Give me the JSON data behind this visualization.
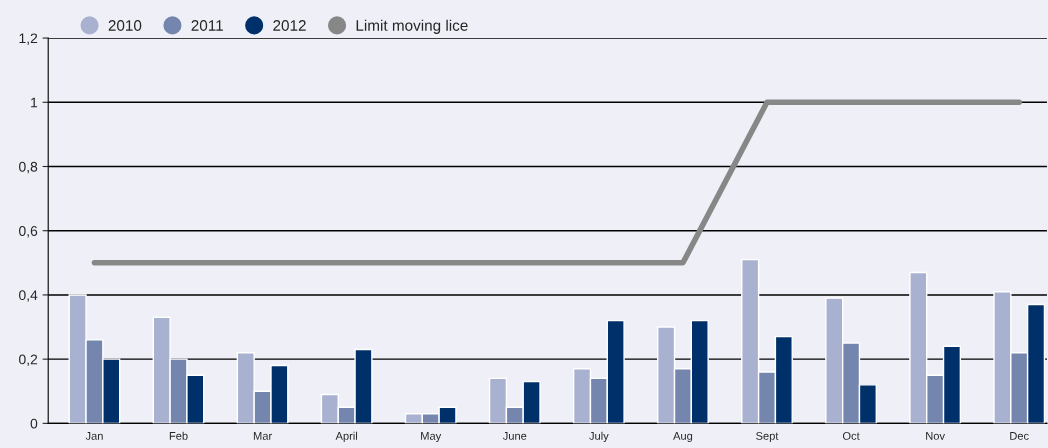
{
  "chart_data": {
    "type": "bar",
    "categories": [
      "Jan",
      "Feb",
      "Mar",
      "April",
      "May",
      "June",
      "July",
      "Aug",
      "Sept",
      "Oct",
      "Nov",
      "Dec"
    ],
    "series": [
      {
        "name": "2010",
        "color": "#a8b1d0",
        "values": [
          0.4,
          0.33,
          0.22,
          0.09,
          0.03,
          0.14,
          0.17,
          0.3,
          0.51,
          0.39,
          0.47,
          0.41
        ]
      },
      {
        "name": "2011",
        "color": "#7485ae",
        "values": [
          0.26,
          0.2,
          0.1,
          0.05,
          0.03,
          0.05,
          0.14,
          0.17,
          0.16,
          0.25,
          0.15,
          0.22
        ]
      },
      {
        "name": "2012",
        "color": "#00306a",
        "values": [
          0.2,
          0.15,
          0.18,
          0.23,
          0.05,
          0.13,
          0.32,
          0.32,
          0.27,
          0.12,
          0.24,
          0.37
        ]
      },
      {
        "name": "Limit moving lice",
        "type": "line",
        "color": "#878787",
        "values": [
          0.5,
          0.5,
          0.5,
          0.5,
          0.5,
          0.5,
          0.5,
          0.5,
          1.0,
          1.0,
          1.0,
          1.0
        ]
      }
    ],
    "ylim": [
      0,
      1.2
    ],
    "yticks": [
      0,
      {
        "value": 0.2,
        "label": "0,2"
      },
      {
        "value": 0.4,
        "label": "0,4"
      },
      {
        "value": 0.6,
        "label": "0,6"
      },
      {
        "value": 0.8,
        "label": "0,8"
      },
      1,
      {
        "value": 1.2,
        "label": "1,2"
      }
    ],
    "grid": "y",
    "legend": "top left",
    "marker": "none"
  }
}
